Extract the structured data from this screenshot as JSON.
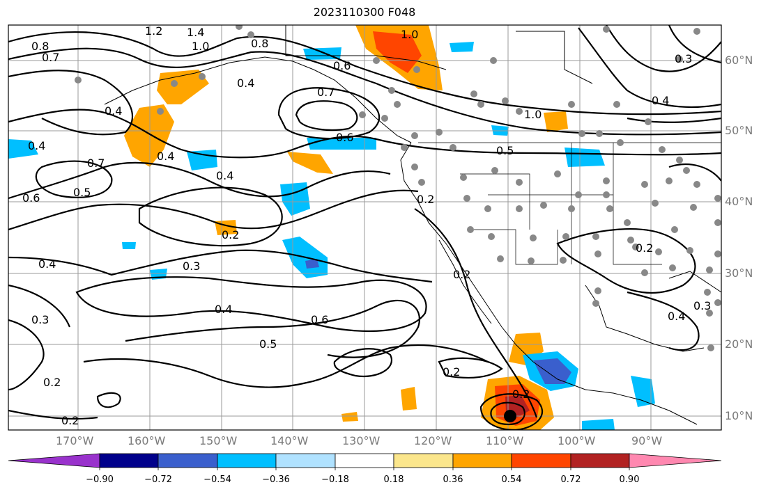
{
  "title": "2023110300 F048",
  "lat_labels": [
    "60°N",
    "50°N",
    "40°N",
    "30°N",
    "20°N",
    "10°N"
  ],
  "lon_labels": [
    "170°W",
    "160°W",
    "150°W",
    "140°W",
    "130°W",
    "120°W",
    "110°W",
    "100°W",
    "90°W"
  ],
  "colorbar": {
    "ticks": [
      "−0.90",
      "−0.72",
      "−0.54",
      "−0.36",
      "−0.18",
      "0.18",
      "0.36",
      "0.54",
      "0.72",
      "0.90"
    ],
    "colors": [
      "#9932cc",
      "#00008b",
      "#3a5fcd",
      "#00bfff",
      "#b0e2ff",
      "#ffffff",
      "#fbe68c",
      "#ffa500",
      "#ff4500",
      "#b22222",
      "#ff88b0"
    ]
  },
  "contour_labels": [
    "0.8",
    "1.2",
    "1.4",
    "1.0",
    "0.8",
    "0.7",
    "0.4",
    "0.4",
    "0.6",
    "0.7",
    "1.0",
    "0.6",
    "0.4",
    "0.4",
    "0.4",
    "0.5",
    "0.6",
    "0.7",
    "0.2",
    "0.2",
    "0.3",
    "0.4",
    "0.4",
    "0.6",
    "0.5",
    "0.2",
    "0.2",
    "0.2",
    "0.2",
    "0.4",
    "0.3",
    "0.3",
    "0.3",
    "0.5",
    "1.0",
    "0.4",
    "0.2",
    "0.2"
  ],
  "colors": {
    "contour": "#000000",
    "grid": "#9a9a9a",
    "station": "#888888",
    "land": "#000000"
  }
}
